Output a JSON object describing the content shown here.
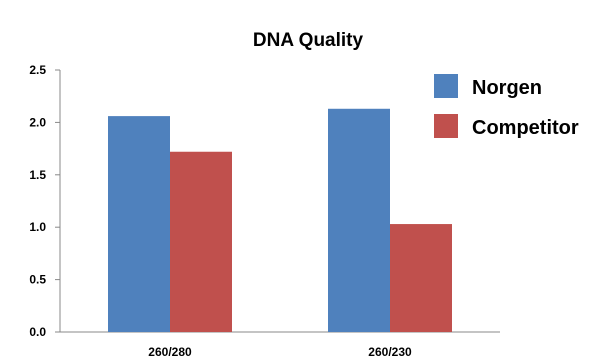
{
  "chart_data": {
    "type": "bar",
    "title": "DNA Quality",
    "categories": [
      "260/280",
      "260/230"
    ],
    "series": [
      {
        "name": "Norgen",
        "values": [
          2.06,
          2.13
        ],
        "color": "#4F81BD"
      },
      {
        "name": "Competitor",
        "values": [
          1.72,
          1.03
        ],
        "color": "#C0504D"
      }
    ],
    "ylim": [
      0,
      2.5
    ],
    "yticks": [
      "0.0",
      "0.5",
      "1.0",
      "1.5",
      "2.0",
      "2.5"
    ],
    "grid": false,
    "legend_position": "top-right"
  }
}
